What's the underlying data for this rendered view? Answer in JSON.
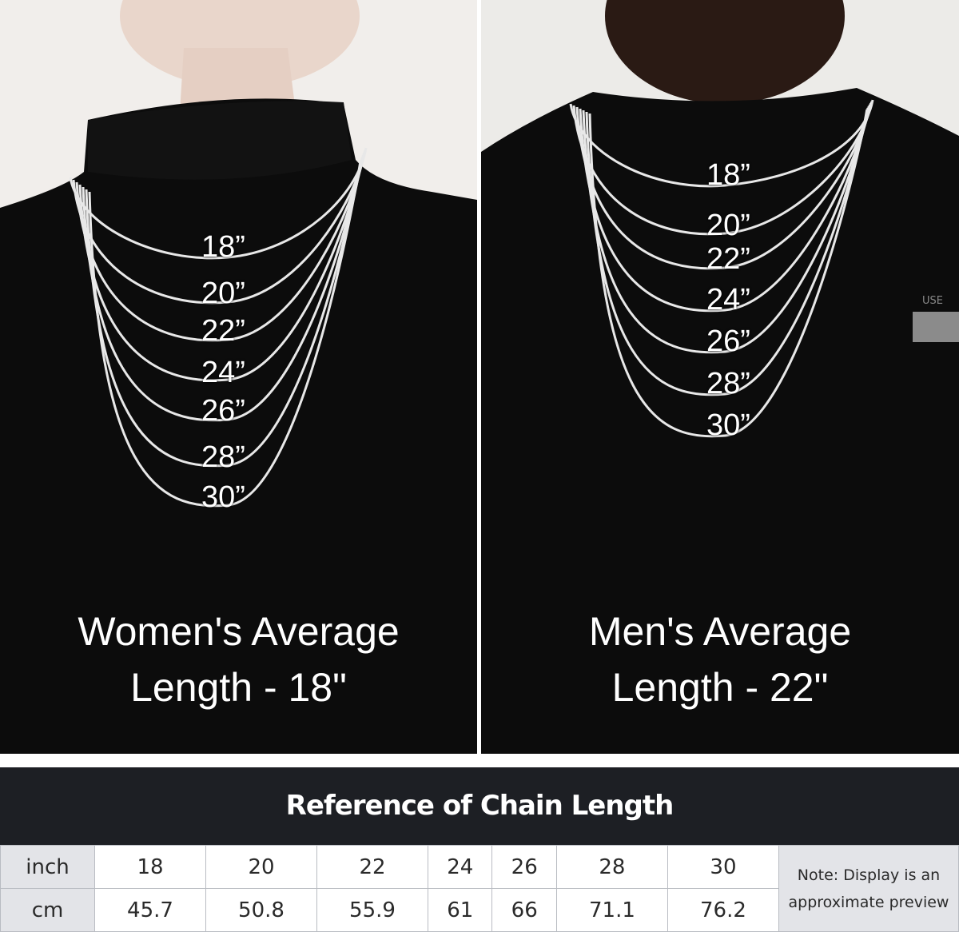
{
  "women_panel": {
    "lengths": [
      "18”",
      "20”",
      "22”",
      "24”",
      "26”",
      "28”",
      "30”"
    ],
    "caption_line1": "Women's Average",
    "caption_line2": "Length - 18\""
  },
  "men_panel": {
    "lengths": [
      "18”",
      "20”",
      "22”",
      "24”",
      "26”",
      "28”",
      "30”"
    ],
    "caption_line1": "Men's Average",
    "caption_line2": "Length - 22\""
  },
  "table": {
    "title": "Reference of Chain Length",
    "rows": [
      {
        "label": "inch",
        "values": [
          "18",
          "20",
          "22",
          "24",
          "26",
          "28",
          "30"
        ]
      },
      {
        "label": "cm",
        "values": [
          "45.7",
          "50.8",
          "55.9",
          "61",
          "66",
          "71.1",
          "76.2"
        ]
      }
    ],
    "note_line1": "Note: Display is an",
    "note_line2": "approximate preview"
  },
  "colors": {
    "shirt": "#0c0c0c",
    "chain": "#e8e8e8",
    "title_bar": "#1d1f24",
    "header_cell": "#e3e4e8"
  }
}
